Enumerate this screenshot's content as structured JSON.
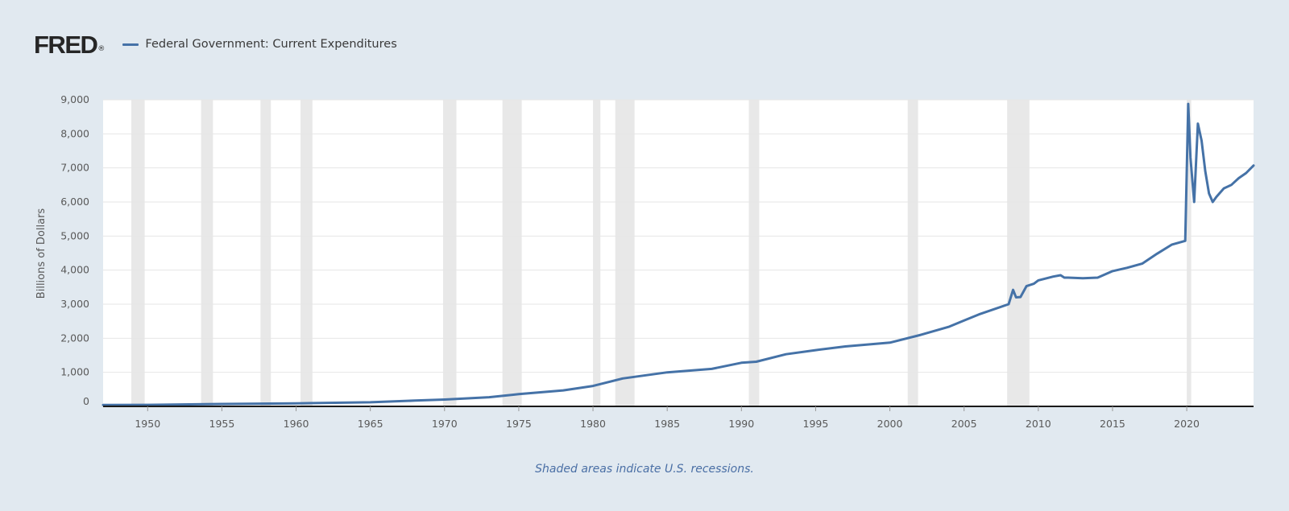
{
  "header": {
    "logo_text": "FRED",
    "logo_registered": "®"
  },
  "colors": {
    "background": "#e1e9f0",
    "plot_background": "#ffffff",
    "series_line": "#4572a7",
    "recession_shade": "#e8e8e8",
    "gridline": "#e6e6e6",
    "axis_line": "#1a1a1a"
  },
  "chart_data": {
    "type": "line",
    "title": "",
    "xlabel": "",
    "ylabel": "Billions of Dollars",
    "xlim": [
      1947.0,
      2024.5
    ],
    "ylim": [
      0,
      9000
    ],
    "grid": true,
    "legend_position": "top-left",
    "x_ticks": [
      1950,
      1955,
      1960,
      1965,
      1970,
      1975,
      1980,
      1985,
      1990,
      1995,
      2000,
      2005,
      2010,
      2015,
      2020
    ],
    "x_tick_labels": [
      "1950",
      "1955",
      "1960",
      "1965",
      "1970",
      "1975",
      "1980",
      "1985",
      "1990",
      "1995",
      "2000",
      "2005",
      "2010",
      "2015",
      "2020"
    ],
    "y_ticks": [
      0,
      1000,
      2000,
      3000,
      4000,
      5000,
      6000,
      7000,
      8000,
      9000
    ],
    "y_tick_labels": [
      "0",
      "1,000",
      "2,000",
      "3,000",
      "4,000",
      "5,000",
      "6,000",
      "7,000",
      "8,000",
      "9,000"
    ],
    "recessions": [
      [
        1948.9,
        1949.8
      ],
      [
        1953.6,
        1954.4
      ],
      [
        1957.6,
        1958.3
      ],
      [
        1960.3,
        1961.1
      ],
      [
        1969.9,
        1970.8
      ],
      [
        1973.9,
        1975.2
      ],
      [
        1980.0,
        1980.5
      ],
      [
        1981.5,
        1982.8
      ],
      [
        1990.5,
        1991.2
      ],
      [
        2001.2,
        2001.9
      ],
      [
        2007.9,
        2009.4
      ],
      [
        2020.0,
        2020.3
      ]
    ],
    "series": [
      {
        "name": "Federal Government: Current Expenditures",
        "x": [
          1947.0,
          1950,
          1955,
          1960,
          1965,
          1968,
          1970,
          1973,
          1975,
          1978,
          1980,
          1982,
          1985,
          1988,
          1990,
          1991,
          1993,
          1995,
          1997,
          2000,
          2002,
          2004,
          2005,
          2006,
          2008.0,
          2008.3,
          2008.5,
          2008.8,
          2009.2,
          2009.7,
          2010,
          2011,
          2011.5,
          2011.75,
          2012,
          2013,
          2014,
          2015,
          2016,
          2017,
          2018,
          2019,
          2019.9,
          2020.1,
          2020.25,
          2020.5,
          2020.75,
          2021.0,
          2021.25,
          2021.5,
          2021.75,
          2022.0,
          2022.5,
          2023.0,
          2023.5,
          2024.0,
          2024.5
        ],
        "values": [
          40,
          45,
          70,
          90,
          120,
          170,
          200,
          270,
          360,
          470,
          600,
          820,
          1000,
          1100,
          1280,
          1310,
          1530,
          1650,
          1760,
          1870,
          2090,
          2340,
          2520,
          2700,
          3000,
          3420,
          3200,
          3210,
          3530,
          3600,
          3700,
          3810,
          3850,
          3780,
          3780,
          3760,
          3780,
          3970,
          4070,
          4190,
          4480,
          4750,
          4860,
          8880,
          7300,
          6000,
          8300,
          7800,
          6900,
          6250,
          6000,
          6150,
          6400,
          6500,
          6700,
          6850,
          7070
        ]
      }
    ]
  },
  "footer": {
    "note": "Shaded areas indicate U.S. recessions."
  }
}
